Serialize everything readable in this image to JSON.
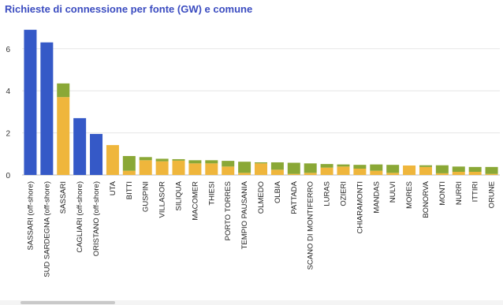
{
  "chart_data": {
    "type": "bar",
    "stacked": true,
    "title": "Richieste di connessione per fonte (GW) e comune",
    "xlabel": "",
    "ylabel": "",
    "ylim": [
      0,
      7.2
    ],
    "yticks": [
      0,
      2,
      4,
      6
    ],
    "grid": true,
    "legend": "none",
    "categories": [
      "SASSARI (off-shore)",
      "SUD SARDEGNA (off-shore)",
      "SASSARI",
      "CAGLIARI (off-shore)",
      "ORISTANO (off-shore)",
      "UTA",
      "BITTI",
      "GUSPINI",
      "VILLASOR",
      "SILIQUA",
      "MACOMER",
      "THIESI",
      "PORTO TORRES",
      "TEMPIO PAUSANIA",
      "OLMEDO",
      "OLBIA",
      "PATTADA",
      "SCANO DI MONTIFERRO",
      "LURAS",
      "OZIERI",
      "CHIARAMONTI",
      "MANDAS",
      "NULVI",
      "MORES",
      "BONORVA",
      "MONTI",
      "NURRI",
      "ITTIRI",
      "ORUNE"
    ],
    "series": [
      {
        "color": "#3559c7",
        "values": [
          6.9,
          6.3,
          0,
          2.7,
          1.95,
          0,
          0,
          0,
          0,
          0,
          0,
          0,
          0,
          0,
          0,
          0,
          0,
          0,
          0,
          0,
          0,
          0,
          0,
          0,
          0,
          0,
          0,
          0,
          0
        ]
      },
      {
        "color": "#efb63c",
        "values": [
          0,
          0,
          3.7,
          0,
          0,
          1.42,
          0.2,
          0.7,
          0.65,
          0.68,
          0.55,
          0.55,
          0.4,
          0.1,
          0.55,
          0.25,
          0.05,
          0.1,
          0.35,
          0.4,
          0.3,
          0.2,
          0.1,
          0.45,
          0.38,
          0.08,
          0.15,
          0.15,
          0.05
        ]
      },
      {
        "color": "#8aa836",
        "values": [
          0,
          0,
          0.65,
          0,
          0,
          0,
          0.7,
          0.15,
          0.12,
          0.07,
          0.15,
          0.15,
          0.27,
          0.53,
          0.05,
          0.35,
          0.53,
          0.45,
          0.17,
          0.1,
          0.18,
          0.3,
          0.38,
          0,
          0.08,
          0.38,
          0.25,
          0.23,
          0.33
        ]
      }
    ]
  }
}
